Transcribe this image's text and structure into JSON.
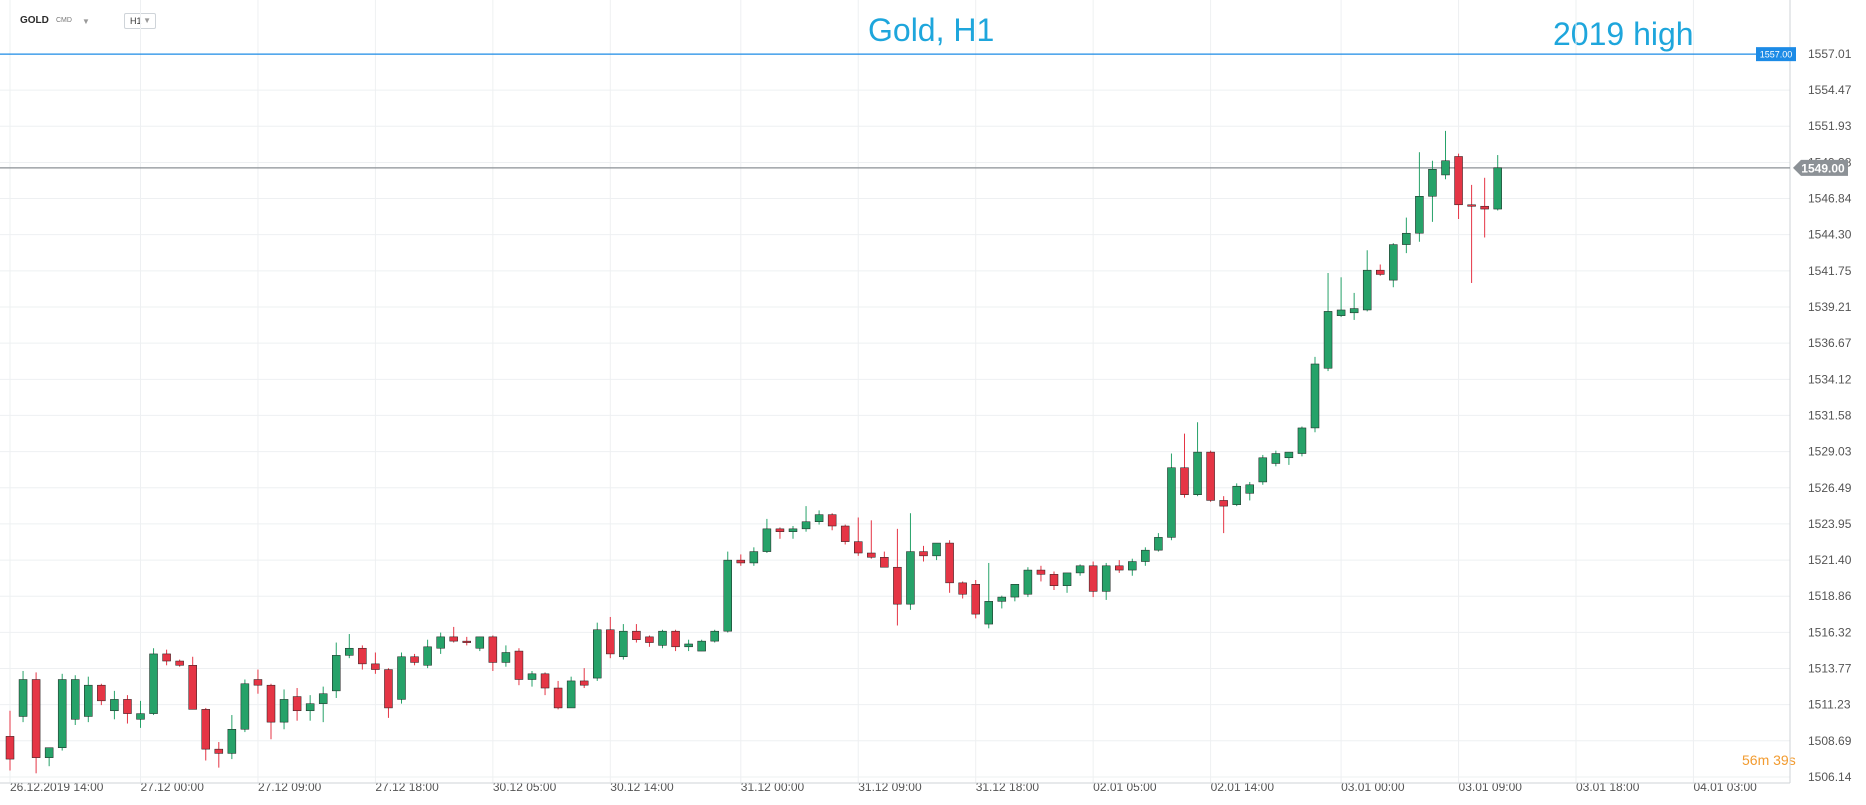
{
  "toolbar": {
    "symbol": "GOLD",
    "asset_class": "CMD",
    "timeframe": "H1"
  },
  "title_text": "Gold, H1",
  "annotation_text": "2019 high",
  "countdown": "56m 39s",
  "colors": {
    "bull": "#26a269",
    "bear": "#e53545",
    "annotation": "#1ea6dc",
    "current_price": "#8c9196",
    "high_line": "#1c8be6",
    "countdown": "#f29b2f",
    "grid": "#eef0f2",
    "axis_text": "#555555"
  },
  "chart_data": {
    "type": "candlestick",
    "title": "Gold, H1",
    "ylim": [
      1506.14,
      1557.01
    ],
    "y_ticks": [
      1557.01,
      1554.47,
      1551.93,
      1549.38,
      1546.84,
      1544.3,
      1541.75,
      1539.21,
      1536.67,
      1534.12,
      1531.58,
      1529.03,
      1526.49,
      1523.95,
      1521.4,
      1518.86,
      1516.32,
      1513.77,
      1511.23,
      1508.69,
      1506.14
    ],
    "y_tick_labels": [
      "1557.01",
      "1554.47",
      "1551.93",
      "1549.38",
      "1546.84",
      "1544.30",
      "1541.75",
      "1539.21",
      "1536.67",
      "1534.12",
      "1531.58",
      "1529.03",
      "1526.49",
      "1523.95",
      "1521.40",
      "1518.86",
      "1516.32",
      "1513.77",
      "1511.23",
      "1508.69",
      "1506.14"
    ],
    "x_ticks": [
      {
        "label": "26.12.2019   14:00",
        "candle": 0
      },
      {
        "label": "27.12  00:00",
        "candle": 10
      },
      {
        "label": "27.12  09:00",
        "candle": 19
      },
      {
        "label": "27.12  18:00",
        "candle": 28
      },
      {
        "label": "30.12  05:00",
        "candle": 37
      },
      {
        "label": "30.12  14:00",
        "candle": 46
      },
      {
        "label": "31.12  00:00",
        "candle": 56
      },
      {
        "label": "31.12  09:00",
        "candle": 65
      },
      {
        "label": "31.12  18:00",
        "candle": 74
      },
      {
        "label": "02.01  05:00",
        "candle": 83
      },
      {
        "label": "02.01  14:00",
        "candle": 92
      },
      {
        "label": "03.01  00:00",
        "candle": 102
      },
      {
        "label": "03.01  09:00",
        "candle": 111
      },
      {
        "label": "03.01  18:00",
        "candle": 120
      },
      {
        "label": "04.01  03:00",
        "candle": 129
      }
    ],
    "resistance_line": {
      "value": 1557.0,
      "label": "1557.00",
      "annotation": "2019 high"
    },
    "current_price": {
      "value": 1549.0,
      "label": "1549.00"
    },
    "candles": [
      [
        1509.0,
        1510.8,
        1506.6,
        1507.4
      ],
      [
        1510.4,
        1513.6,
        1510.0,
        1513.0
      ],
      [
        1513.0,
        1513.5,
        1506.4,
        1507.5
      ],
      [
        1507.5,
        1508.2,
        1506.9,
        1508.2
      ],
      [
        1508.2,
        1513.4,
        1508.0,
        1513.0
      ],
      [
        1510.2,
        1513.3,
        1509.8,
        1513.0
      ],
      [
        1510.4,
        1513.2,
        1510.0,
        1512.6
      ],
      [
        1512.6,
        1512.7,
        1511.2,
        1511.5
      ],
      [
        1510.8,
        1512.2,
        1510.2,
        1511.6
      ],
      [
        1511.6,
        1511.9,
        1509.9,
        1510.6
      ],
      [
        1510.2,
        1511.5,
        1509.6,
        1510.6
      ],
      [
        1510.6,
        1515.2,
        1510.5,
        1514.8
      ],
      [
        1514.8,
        1515.1,
        1514.0,
        1514.3
      ],
      [
        1514.3,
        1514.4,
        1513.9,
        1514.0
      ],
      [
        1514.0,
        1514.6,
        1510.9,
        1510.9
      ],
      [
        1510.9,
        1511.0,
        1507.3,
        1508.1
      ],
      [
        1508.1,
        1508.6,
        1506.8,
        1507.8
      ],
      [
        1507.8,
        1510.5,
        1507.4,
        1509.5
      ],
      [
        1509.5,
        1513.0,
        1509.3,
        1512.7
      ],
      [
        1513.0,
        1513.7,
        1512.0,
        1512.6
      ],
      [
        1512.6,
        1512.7,
        1508.8,
        1510.0
      ],
      [
        1510.0,
        1512.3,
        1509.5,
        1511.6
      ],
      [
        1511.8,
        1512.4,
        1510.1,
        1510.8
      ],
      [
        1510.8,
        1511.9,
        1510.1,
        1511.3
      ],
      [
        1511.3,
        1512.5,
        1510.0,
        1512.0
      ],
      [
        1512.2,
        1515.6,
        1511.7,
        1514.7
      ],
      [
        1514.7,
        1516.2,
        1514.5,
        1515.2
      ],
      [
        1515.2,
        1515.4,
        1513.7,
        1514.1
      ],
      [
        1514.1,
        1514.9,
        1513.4,
        1513.7
      ],
      [
        1513.7,
        1513.8,
        1510.3,
        1511.0
      ],
      [
        1511.6,
        1514.9,
        1511.3,
        1514.6
      ],
      [
        1514.6,
        1514.8,
        1514.0,
        1514.2
      ],
      [
        1514.0,
        1515.8,
        1513.8,
        1515.3
      ],
      [
        1515.2,
        1516.3,
        1514.8,
        1516.0
      ],
      [
        1516.0,
        1516.7,
        1515.6,
        1515.7
      ],
      [
        1515.7,
        1516.0,
        1515.4,
        1515.6
      ],
      [
        1515.2,
        1516.0,
        1515.0,
        1516.0
      ],
      [
        1516.0,
        1516.1,
        1513.6,
        1514.2
      ],
      [
        1514.2,
        1515.4,
        1513.9,
        1514.9
      ],
      [
        1515.0,
        1515.2,
        1512.6,
        1513.0
      ],
      [
        1513.0,
        1513.6,
        1512.5,
        1513.4
      ],
      [
        1513.4,
        1513.5,
        1511.9,
        1512.4
      ],
      [
        1512.4,
        1512.9,
        1510.9,
        1511.0
      ],
      [
        1511.0,
        1513.2,
        1511.0,
        1512.9
      ],
      [
        1512.9,
        1513.8,
        1512.4,
        1512.6
      ],
      [
        1513.1,
        1517.0,
        1512.9,
        1516.5
      ],
      [
        1516.5,
        1517.4,
        1514.5,
        1514.8
      ],
      [
        1514.6,
        1516.9,
        1514.4,
        1516.4
      ],
      [
        1516.4,
        1516.9,
        1515.6,
        1515.8
      ],
      [
        1516.0,
        1516.1,
        1515.3,
        1515.6
      ],
      [
        1515.4,
        1516.5,
        1515.2,
        1516.4
      ],
      [
        1516.4,
        1516.5,
        1515.0,
        1515.3
      ],
      [
        1515.3,
        1515.8,
        1515.0,
        1515.5
      ],
      [
        1515.0,
        1515.8,
        1515.0,
        1515.7
      ],
      [
        1515.7,
        1516.5,
        1515.6,
        1516.4
      ],
      [
        1516.4,
        1522.0,
        1516.3,
        1521.4
      ],
      [
        1521.4,
        1521.8,
        1521.0,
        1521.2
      ],
      [
        1521.2,
        1522.3,
        1521.0,
        1522.0
      ],
      [
        1522.0,
        1524.3,
        1521.9,
        1523.6
      ],
      [
        1523.6,
        1523.7,
        1522.9,
        1523.4
      ],
      [
        1523.4,
        1523.8,
        1522.9,
        1523.6
      ],
      [
        1523.6,
        1525.2,
        1523.4,
        1524.1
      ],
      [
        1524.1,
        1524.9,
        1523.9,
        1524.6
      ],
      [
        1524.6,
        1524.7,
        1523.5,
        1523.8
      ],
      [
        1523.8,
        1523.9,
        1522.5,
        1522.7
      ],
      [
        1522.7,
        1524.4,
        1521.7,
        1521.9
      ],
      [
        1521.9,
        1524.2,
        1521.5,
        1521.6
      ],
      [
        1521.6,
        1522.0,
        1520.9,
        1520.9
      ],
      [
        1520.9,
        1523.6,
        1516.8,
        1518.3
      ],
      [
        1518.3,
        1524.7,
        1517.9,
        1522.0
      ],
      [
        1522.0,
        1522.4,
        1521.3,
        1521.7
      ],
      [
        1521.7,
        1522.6,
        1521.4,
        1522.6
      ],
      [
        1522.6,
        1522.8,
        1519.1,
        1519.8
      ],
      [
        1519.8,
        1519.9,
        1518.7,
        1519.0
      ],
      [
        1519.7,
        1520.0,
        1517.3,
        1517.6
      ],
      [
        1516.9,
        1521.2,
        1516.6,
        1518.5
      ],
      [
        1518.5,
        1518.9,
        1518.0,
        1518.8
      ],
      [
        1518.8,
        1519.4,
        1518.5,
        1519.7
      ],
      [
        1519.0,
        1520.9,
        1518.8,
        1520.7
      ],
      [
        1520.7,
        1521.0,
        1519.9,
        1520.4
      ],
      [
        1520.4,
        1520.6,
        1519.3,
        1519.6
      ],
      [
        1519.6,
        1520.5,
        1519.1,
        1520.5
      ],
      [
        1520.5,
        1521.1,
        1520.3,
        1521.0
      ],
      [
        1521.0,
        1521.3,
        1518.8,
        1519.2
      ],
      [
        1519.2,
        1521.2,
        1518.6,
        1521.0
      ],
      [
        1521.0,
        1521.4,
        1520.5,
        1520.7
      ],
      [
        1520.7,
        1521.5,
        1520.3,
        1521.3
      ],
      [
        1521.3,
        1522.3,
        1521.0,
        1522.1
      ],
      [
        1522.1,
        1523.3,
        1522.0,
        1523.0
      ],
      [
        1523.0,
        1528.9,
        1522.8,
        1527.9
      ],
      [
        1527.9,
        1530.3,
        1525.8,
        1526.0
      ],
      [
        1526.0,
        1531.1,
        1525.9,
        1529.0
      ],
      [
        1529.0,
        1529.1,
        1525.5,
        1525.6
      ],
      [
        1525.6,
        1525.9,
        1523.3,
        1525.2
      ],
      [
        1525.3,
        1526.8,
        1525.2,
        1526.6
      ],
      [
        1526.1,
        1526.9,
        1525.6,
        1526.7
      ],
      [
        1526.9,
        1528.8,
        1526.7,
        1528.6
      ],
      [
        1528.2,
        1529.1,
        1528.0,
        1528.9
      ],
      [
        1528.6,
        1529.0,
        1528.1,
        1529.0
      ],
      [
        1528.9,
        1530.8,
        1528.7,
        1530.7
      ],
      [
        1530.7,
        1535.7,
        1530.4,
        1535.2
      ],
      [
        1534.9,
        1541.6,
        1534.7,
        1538.9
      ],
      [
        1538.6,
        1541.3,
        1538.5,
        1539.0
      ],
      [
        1538.8,
        1540.2,
        1538.3,
        1539.1
      ],
      [
        1539.0,
        1543.2,
        1538.9,
        1541.8
      ],
      [
        1541.8,
        1542.2,
        1541.4,
        1541.5
      ],
      [
        1541.1,
        1543.7,
        1540.6,
        1543.6
      ],
      [
        1543.6,
        1545.5,
        1543.0,
        1544.4
      ],
      [
        1544.4,
        1550.1,
        1543.8,
        1547.0
      ],
      [
        1547.0,
        1549.5,
        1545.2,
        1548.9
      ],
      [
        1548.5,
        1551.6,
        1548.2,
        1549.5
      ],
      [
        1549.8,
        1550.0,
        1545.4,
        1546.4
      ],
      [
        1546.4,
        1547.8,
        1540.9,
        1546.3
      ],
      [
        1546.3,
        1548.3,
        1544.1,
        1546.1
      ],
      [
        1546.1,
        1549.9,
        1546.0,
        1549.0
      ]
    ]
  }
}
